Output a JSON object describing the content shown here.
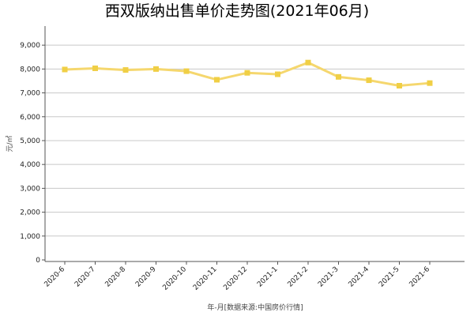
{
  "chart_data": {
    "type": "line",
    "title": "西双版纳出售单价走势图(2021年06月)",
    "xlabel": "年-月[数据来源:中国房价行情]",
    "ylabel": "元/㎡",
    "categories": [
      "2020-6",
      "2020-7",
      "2020-8",
      "2020-9",
      "2020-10",
      "2020-11",
      "2020-12",
      "2021-1",
      "2021-2",
      "2021-3",
      "2021-4",
      "2021-5",
      "2021-6"
    ],
    "series": [
      {
        "values": [
          7980,
          8030,
          7960,
          8000,
          7910,
          7550,
          7840,
          7780,
          8270,
          7670,
          7530,
          7300,
          7410
        ]
      }
    ],
    "ylim": [
      0,
      9800
    ],
    "yticks": [
      0,
      1000,
      2000,
      3000,
      4000,
      5000,
      6000,
      7000,
      8000,
      9000
    ],
    "ytick_labels": [
      "0",
      "1,000",
      "2,000",
      "3,000",
      "4,000",
      "5,000",
      "6,000",
      "7,000",
      "8,000",
      "9,000"
    ],
    "grid": "horizontal",
    "line_color": "#f5d76e",
    "marker_color": "#f0cf45"
  }
}
